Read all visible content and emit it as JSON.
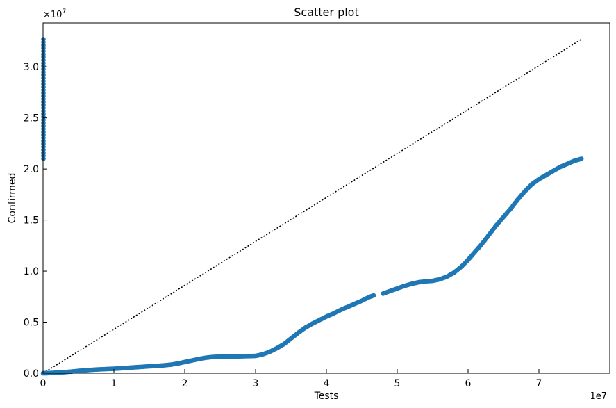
{
  "chart_data": {
    "type": "scatter",
    "title": "Scatter plot",
    "xlabel": "Tests",
    "ylabel": "Confirmed",
    "x_offset_label": "1e7",
    "y_offset_label": "×10",
    "y_offset_exp": "7",
    "xlim": [
      0,
      80000000
    ],
    "ylim": [
      0,
      34300000
    ],
    "x_ticks": [
      {
        "value": 0,
        "label": "0"
      },
      {
        "value": 10000000,
        "label": "1"
      },
      {
        "value": 20000000,
        "label": "2"
      },
      {
        "value": 30000000,
        "label": "3"
      },
      {
        "value": 40000000,
        "label": "4"
      },
      {
        "value": 50000000,
        "label": "5"
      },
      {
        "value": 60000000,
        "label": "6"
      },
      {
        "value": 70000000,
        "label": "7"
      }
    ],
    "y_ticks": [
      {
        "value": 0,
        "label": "0.0"
      },
      {
        "value": 5000000,
        "label": "0.5"
      },
      {
        "value": 10000000,
        "label": "1.0"
      },
      {
        "value": 15000000,
        "label": "1.5"
      },
      {
        "value": 20000000,
        "label": "2.0"
      },
      {
        "value": 25000000,
        "label": "2.5"
      },
      {
        "value": 30000000,
        "label": "3.0"
      }
    ],
    "grid": false,
    "reference_line": {
      "style": "dotted",
      "color": "#000000",
      "x": [
        0,
        76000000
      ],
      "y": [
        0,
        32700000
      ]
    },
    "series": [
      {
        "color": "#1f77b4",
        "points": [
          [
            0,
            0
          ],
          [
            500000,
            5000
          ],
          [
            1000000,
            20000
          ],
          [
            2000000,
            60000
          ],
          [
            3000000,
            100000
          ],
          [
            4000000,
            160000
          ],
          [
            5000000,
            230000
          ],
          [
            6000000,
            290000
          ],
          [
            7000000,
            340000
          ],
          [
            8000000,
            380000
          ],
          [
            9000000,
            410000
          ],
          [
            10000000,
            440000
          ],
          [
            11000000,
            480000
          ],
          [
            12000000,
            530000
          ],
          [
            13000000,
            580000
          ],
          [
            14000000,
            630000
          ],
          [
            15000000,
            680000
          ],
          [
            16000000,
            720000
          ],
          [
            17000000,
            770000
          ],
          [
            18000000,
            840000
          ],
          [
            19000000,
            950000
          ],
          [
            20000000,
            1100000
          ],
          [
            21000000,
            1250000
          ],
          [
            22000000,
            1400000
          ],
          [
            23000000,
            1520000
          ],
          [
            24000000,
            1600000
          ],
          [
            25000000,
            1620000
          ],
          [
            26000000,
            1630000
          ],
          [
            27000000,
            1640000
          ],
          [
            28000000,
            1660000
          ],
          [
            29000000,
            1680000
          ],
          [
            30000000,
            1700000
          ],
          [
            31000000,
            1850000
          ],
          [
            32000000,
            2100000
          ],
          [
            33000000,
            2450000
          ],
          [
            34000000,
            2850000
          ],
          [
            35000000,
            3400000
          ],
          [
            36000000,
            3950000
          ],
          [
            37000000,
            4450000
          ],
          [
            38000000,
            4850000
          ],
          [
            39000000,
            5200000
          ],
          [
            40000000,
            5550000
          ],
          [
            41000000,
            5850000
          ],
          [
            42000000,
            6200000
          ],
          [
            43000000,
            6500000
          ],
          [
            44000000,
            6800000
          ],
          [
            45000000,
            7100000
          ],
          [
            46000000,
            7450000
          ],
          [
            46800000,
            7650000
          ],
          [
            48000000,
            7800000
          ],
          [
            49000000,
            8050000
          ],
          [
            50000000,
            8300000
          ],
          [
            51000000,
            8550000
          ],
          [
            52000000,
            8750000
          ],
          [
            53000000,
            8900000
          ],
          [
            54000000,
            9000000
          ],
          [
            55000000,
            9050000
          ],
          [
            56000000,
            9200000
          ],
          [
            57000000,
            9450000
          ],
          [
            58000000,
            9850000
          ],
          [
            59000000,
            10400000
          ],
          [
            60000000,
            11100000
          ],
          [
            61000000,
            11900000
          ],
          [
            62000000,
            12700000
          ],
          [
            63000000,
            13600000
          ],
          [
            64000000,
            14500000
          ],
          [
            65000000,
            15300000
          ],
          [
            66000000,
            16100000
          ],
          [
            67000000,
            17000000
          ],
          [
            68000000,
            17800000
          ],
          [
            69000000,
            18500000
          ],
          [
            70000000,
            19000000
          ],
          [
            71000000,
            19400000
          ],
          [
            72000000,
            19800000
          ],
          [
            73000000,
            20200000
          ],
          [
            74000000,
            20500000
          ],
          [
            75000000,
            20800000
          ],
          [
            76000000,
            21000000
          ]
        ],
        "vertical_cluster": {
          "x": 0,
          "y_range": [
            21000000,
            32700000
          ]
        }
      }
    ]
  }
}
